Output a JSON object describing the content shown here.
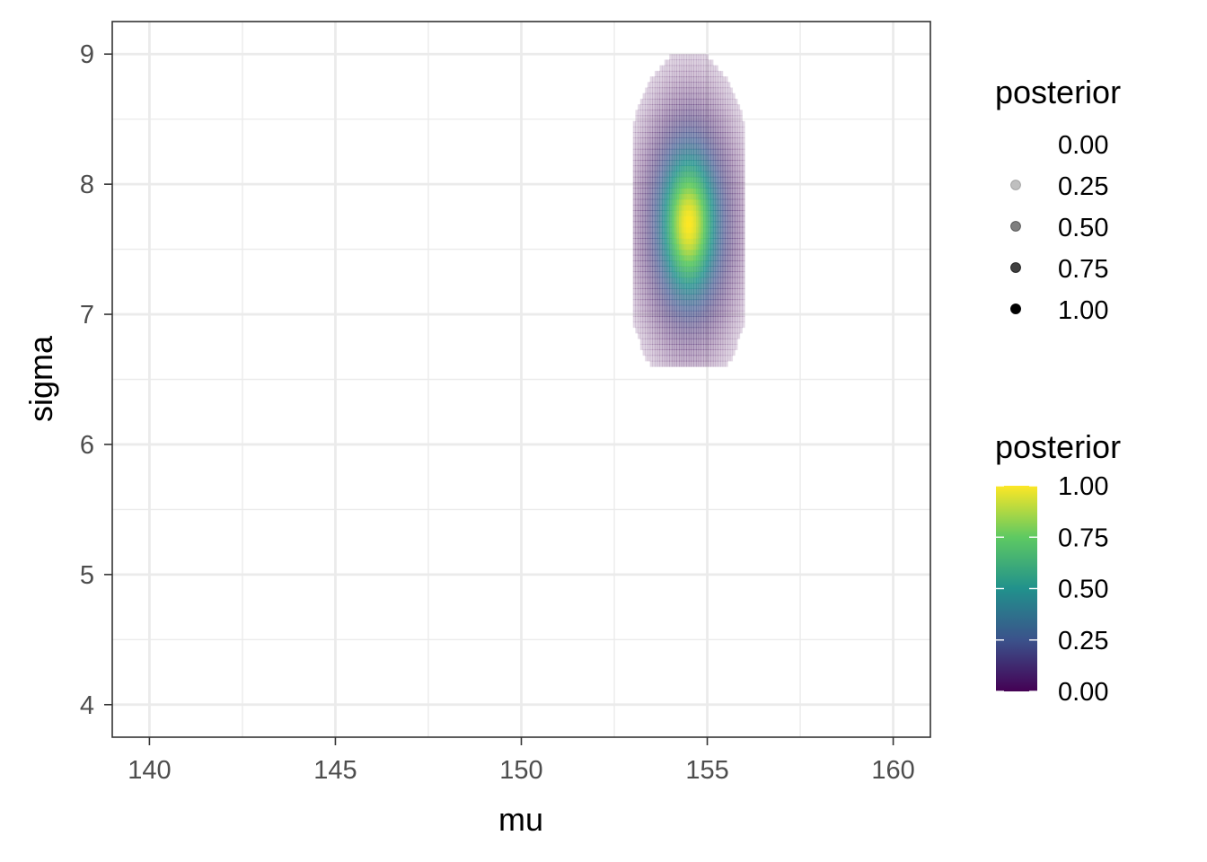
{
  "chart_data": {
    "type": "heatmap",
    "title": "",
    "xlabel": "mu",
    "ylabel": "sigma",
    "xlim": [
      139,
      161
    ],
    "ylim": [
      3.75,
      9.25
    ],
    "x_ticks": [
      140,
      145,
      150,
      155,
      160
    ],
    "y_ticks": [
      4,
      5,
      6,
      7,
      8,
      9
    ],
    "x_tick_labels": [
      "140",
      "145",
      "150",
      "155",
      "160"
    ],
    "y_tick_labels": [
      "4",
      "5",
      "6",
      "7",
      "8",
      "9"
    ],
    "grid": true,
    "legend_position": "right",
    "surface": {
      "description_values": "posterior density peaked near mu 154.5, sigma 7.7",
      "peak": {
        "mu": 154.5,
        "sigma": 7.7,
        "posterior": 1.0
      },
      "sd_mu": 0.55,
      "sd_sigma": 0.4,
      "grid_range_mu": [
        153.0,
        156.0
      ],
      "grid_range_sigma": [
        6.6,
        9.0
      ]
    },
    "legends": [
      {
        "kind": "alpha",
        "title": "posterior",
        "breaks": [
          0.0,
          0.25,
          0.5,
          0.75,
          1.0
        ],
        "labels": [
          "0.00",
          "0.25",
          "0.50",
          "0.75",
          "1.00"
        ]
      },
      {
        "kind": "fill",
        "title": "posterior",
        "palette": "viridis",
        "breaks": [
          1.0,
          0.75,
          0.5,
          0.25,
          0.0
        ],
        "labels": [
          "1.00",
          "0.75",
          "0.50",
          "0.25",
          "0.00"
        ],
        "colors": [
          "#440154",
          "#3b528b",
          "#21918c",
          "#5ec962",
          "#fde725"
        ]
      }
    ]
  }
}
